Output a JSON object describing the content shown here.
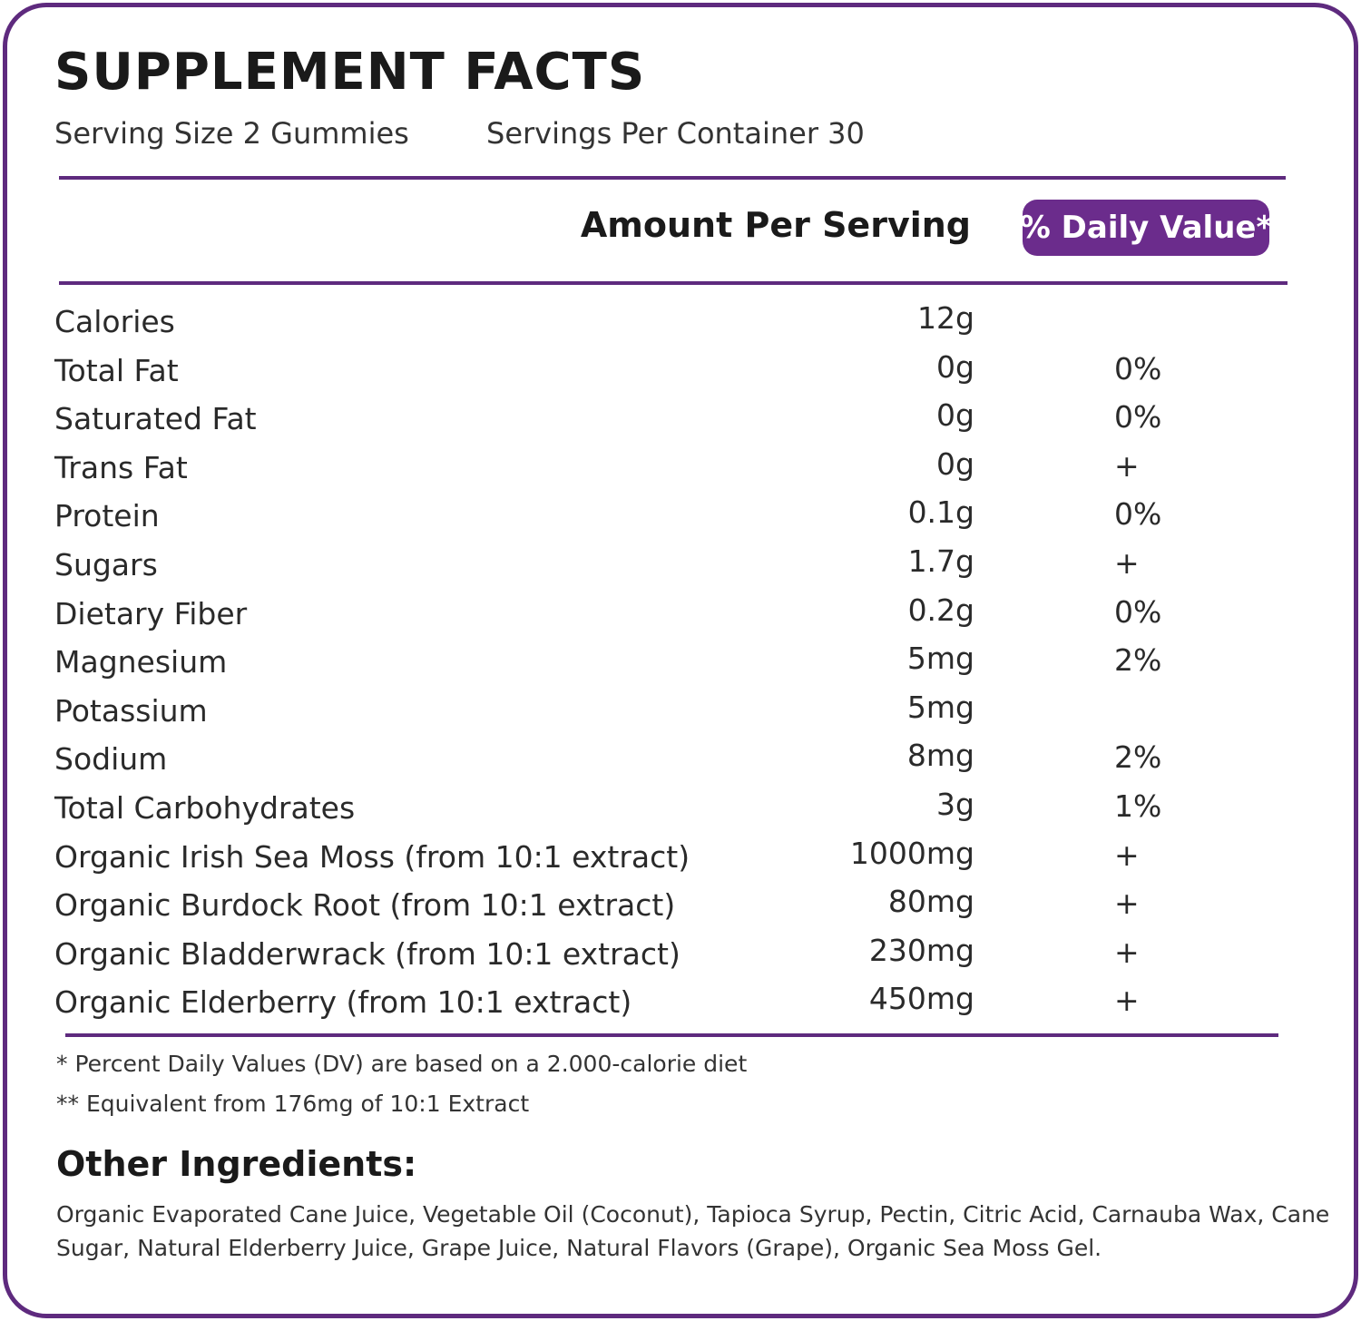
{
  "title": "SUPPLEMENT FACTS",
  "serving_size": "Serving Size 2 Gummies",
  "servings_per_container": "Servings Per Container 30",
  "header": {
    "amount": "Amount Per Serving",
    "daily_value": "% Daily Value*"
  },
  "rows": [
    {
      "name": "Calories",
      "amount": "12g"
    },
    {
      "name": "Total Fat",
      "amount": "0g",
      "dv": "0%"
    },
    {
      "name": "Saturated Fat",
      "amount": "0g",
      "dv": "0%"
    },
    {
      "name": "Trans Fat",
      "amount": "0g",
      "dv": "+"
    },
    {
      "name": "Protein",
      "amount": "0.1g",
      "dv": "0%"
    },
    {
      "name": "Sugars",
      "amount": "1.7g",
      "dv": "+"
    },
    {
      "name": "Dietary Fiber",
      "amount": "0.2g",
      "dv": "0%"
    },
    {
      "name": "Magnesium",
      "amount": "5mg",
      "dv": "2%"
    },
    {
      "name": "Potassium",
      "amount": "5mg"
    },
    {
      "name": "Sodium",
      "amount": "8mg",
      "dv": "2%"
    },
    {
      "name": "Total Carbohydrates",
      "amount": "3g",
      "dv": "1%"
    },
    {
      "name": "Organic Irish Sea Moss (from 10:1 extract)",
      "amount": "1000mg",
      "dv": "+"
    },
    {
      "name": "Organic Burdock Root (from 10:1 extract)",
      "amount": "80mg",
      "dv": "+"
    },
    {
      "name": "Organic Bladderwrack (from 10:1 extract)",
      "amount": "230mg",
      "dv": "+"
    },
    {
      "name": "Organic Elderberry (from 10:1 extract)",
      "amount": "450mg",
      "dv": "+"
    }
  ],
  "footnotes": [
    "* Percent Daily Values (DV) are based on a 2.000-calorie diet",
    "** Equivalent from 176mg of 10:1 Extract"
  ],
  "other_ingredients": {
    "title": "Other Ingredients:",
    "text": "Organic Evaporated Cane Juice, Vegetable Oil (Coconut), Tapioca Syrup, Pectin, Citric Acid, Carnauba Wax, Cane Sugar, Natural Elderberry Juice, Grape Juice, Natural Flavors (Grape), Organic Sea Moss Gel."
  }
}
